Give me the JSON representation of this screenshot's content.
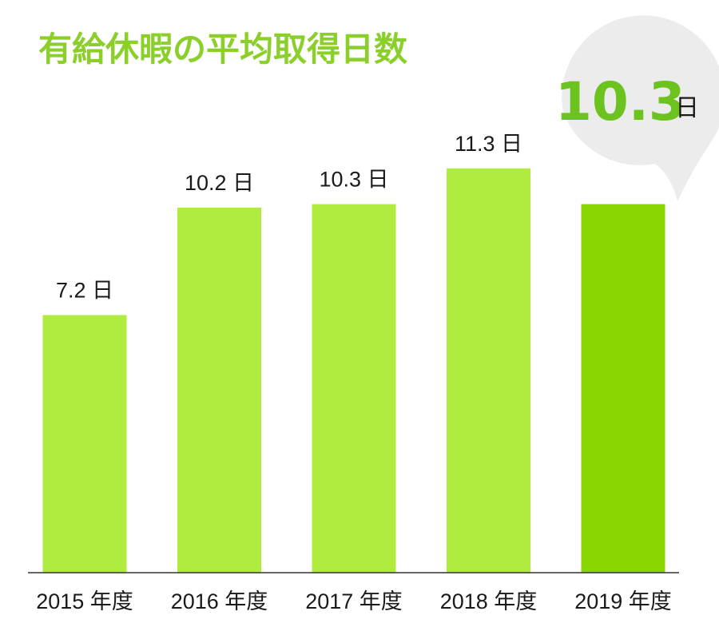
{
  "chart_data": {
    "type": "bar",
    "title": "有給休暇の平均取得日数",
    "categories": [
      "2015 年度",
      "2016 年度",
      "2017 年度",
      "2018 年度",
      "2019 年度"
    ],
    "values": [
      7.2,
      10.2,
      10.3,
      11.3,
      10.3
    ],
    "value_labels": [
      "7.2 日",
      "10.2 日",
      "10.3 日",
      "11.3 日",
      ""
    ],
    "highlight": {
      "value": "10.3",
      "unit": "日"
    },
    "xlabel": "",
    "ylabel": "",
    "ylim": [
      0,
      15
    ],
    "grid": false,
    "legend": "none"
  },
  "colors": {
    "bar": "#b0eb40",
    "bar_highlight": "#8ad600",
    "title": "#8bcf2a",
    "callout_bubble": "#ececec",
    "callout_value": "#6cc21f",
    "axis": "#333333",
    "text": "#1a1a1a"
  }
}
